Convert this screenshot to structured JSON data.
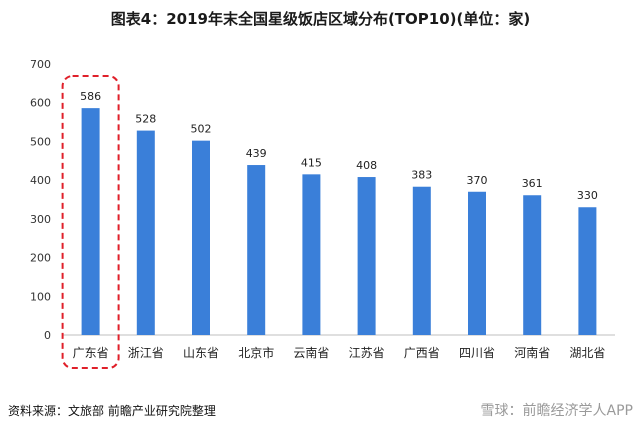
{
  "chart_data": {
    "type": "bar",
    "title": "图表4：2019年末全国星级饭店区域分布(TOP10)(单位：家)",
    "categories": [
      "广东省",
      "浙江省",
      "山东省",
      "北京市",
      "云南省",
      "江苏省",
      "广西省",
      "四川省",
      "河南省",
      "湖北省"
    ],
    "values": [
      586,
      528,
      502,
      439,
      415,
      408,
      383,
      370,
      361,
      330
    ],
    "xlabel": "",
    "ylabel": "",
    "ylim": [
      0,
      700
    ],
    "yticks": [
      0,
      100,
      200,
      300,
      400,
      500,
      600,
      700
    ],
    "grid": false,
    "legend": "none",
    "highlight_index": 0
  },
  "colors": {
    "bar": "#3a7fd9",
    "highlight_border": "#e0202a",
    "axis": "#bfbfbf"
  },
  "footer": {
    "source": "资料来源：文旅部 前瞻产业研究院整理",
    "watermark": "雪球：前瞻经济学人APP"
  }
}
